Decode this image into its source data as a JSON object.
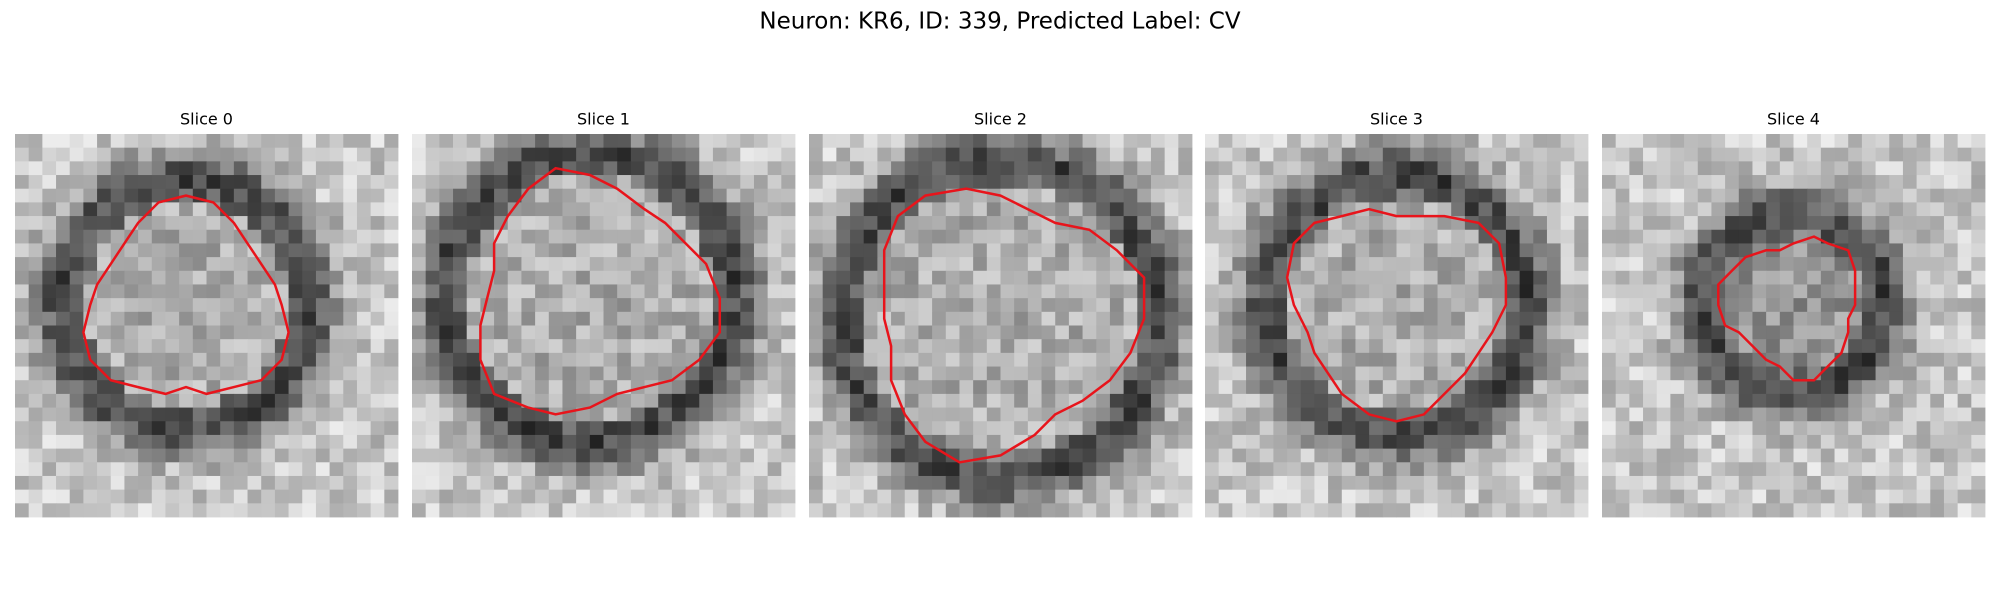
{
  "title": "Neuron: KR6, ID: 339, Predicted Label: CV",
  "panels": [
    {
      "title": "Slice 0"
    },
    {
      "title": "Slice 1"
    },
    {
      "title": "Slice 2"
    },
    {
      "title": "Slice 3"
    },
    {
      "title": "Slice 4"
    }
  ]
}
